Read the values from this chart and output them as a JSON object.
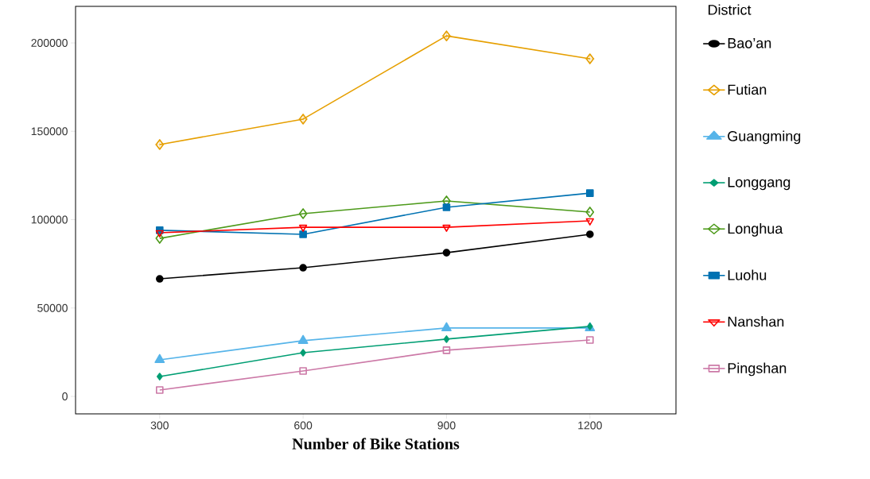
{
  "chart_data": {
    "type": "line",
    "xlabel": "Number of Bike Stations",
    "legend_title": "District",
    "legend": "right",
    "x": [
      300,
      600,
      900,
      1200
    ],
    "xlim": [
      124,
      1380
    ],
    "xticks": [
      300,
      600,
      900,
      1200
    ],
    "ylim": [
      -9900,
      220700
    ],
    "yticks": [
      0,
      50000,
      100000,
      150000,
      200000
    ],
    "grid": false,
    "series": [
      {
        "name": "Bao’an",
        "color": "#000000",
        "marker": "circle",
        "values": [
          66500,
          72800,
          81300,
          91700
        ]
      },
      {
        "name": "Futian",
        "color": "#e69f00",
        "marker": "diamond-plus",
        "values": [
          142500,
          156900,
          204000,
          191000
        ]
      },
      {
        "name": "Guangming",
        "color": "#56b4e9",
        "marker": "triangle",
        "values": [
          20700,
          31500,
          38700,
          38700
        ]
      },
      {
        "name": "Longgang",
        "color": "#009e73",
        "marker": "diamond",
        "values": [
          11200,
          24700,
          32400,
          39600
        ]
      },
      {
        "name": "Longhua",
        "color": "#4d9a1a",
        "marker": "diamond-open",
        "values": [
          89400,
          103400,
          110600,
          104300
        ]
      },
      {
        "name": "Luohu",
        "color": "#0072b2",
        "marker": "square",
        "values": [
          94000,
          91700,
          107000,
          115000
        ]
      },
      {
        "name": "Nanshan",
        "color": "#ff0000",
        "marker": "triangle-down-open",
        "values": [
          92600,
          95700,
          95700,
          99300
        ]
      },
      {
        "name": "Pingshan",
        "color": "#cc79a7",
        "marker": "square-open",
        "values": [
          3600,
          14400,
          26100,
          31900
        ]
      }
    ]
  }
}
